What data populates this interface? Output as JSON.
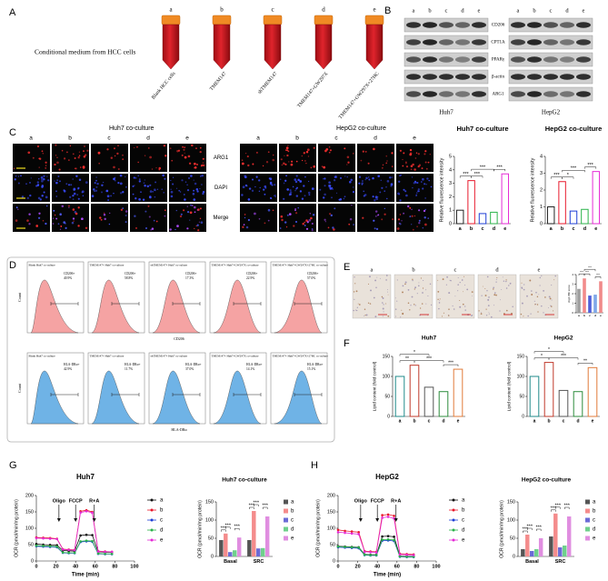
{
  "panel_labels": [
    "A",
    "B",
    "C",
    "D",
    "E",
    "F",
    "G",
    "H"
  ],
  "panel_a": {
    "caption": "Conditional medium from HCC cells",
    "tube_letters": [
      "a",
      "b",
      "c",
      "d",
      "e"
    ],
    "tube_labels": [
      "Blank HCC cells",
      "TMEM147",
      "shTMEM147",
      "TMEM147+GW297X",
      "TMEM147+GW297X+27HC"
    ]
  },
  "panel_b": {
    "lane_letters": [
      "a",
      "b",
      "c",
      "d",
      "e"
    ],
    "proteins": [
      "CD206",
      "CPT1A",
      "PPARγ",
      "β-actin",
      "ARG1"
    ],
    "cell_lines": [
      "Huh7",
      "HepG2"
    ]
  },
  "panel_c": {
    "titles": [
      "Huh7 co-culture",
      "HepG2 co-culture"
    ],
    "lane_letters": [
      "a",
      "b",
      "c",
      "d",
      "e"
    ],
    "stains": [
      "ARG1",
      "DAPI",
      "Merge"
    ]
  },
  "panel_d": {
    "rows": [
      {
        "x_label": "CD206",
        "y_label": "Count",
        "color": "#f5a3a3",
        "titles": [
          "Blank Huh7 co-culture",
          "TMEM147+ Huh7 co-culture",
          "shTMEM147+ Huh7 co-culture",
          "TMEM147+ Huh7+GW297X co-culture",
          "TMEM147+ Huh7+GW297X+27HC co-culture"
        ],
        "gates": [
          {
            "label": "CD206+",
            "percent": "40.9%"
          },
          {
            "label": "CD206+",
            "percent": "58.8%"
          },
          {
            "label": "CD206+",
            "percent": "17.3%"
          },
          {
            "label": "CD206+",
            "percent": "22.9%"
          },
          {
            "label": "CD206+",
            "percent": "57.0%"
          }
        ]
      },
      {
        "x_label": "HLA-DRα",
        "y_label": "Count",
        "color": "#6fb3e6",
        "titles": [
          "Blank Huh7 co-culture",
          "TMEM147+ Huh7 co-culture",
          "shTMEM147+ Huh7 co-culture",
          "TMEM147+ Huh7+GW297X co-culture",
          "TMEM147+ Huh7+GW297X+27HC co-culture"
        ],
        "gates": [
          {
            "label": "HLA-DRα+",
            "percent": "42.9%"
          },
          {
            "label": "HLA-DRα+",
            "percent": "11.7%"
          },
          {
            "label": "HLA-DRα+",
            "percent": "37.0%"
          },
          {
            "label": "HLA-DRα+",
            "percent": "14.1%"
          },
          {
            "label": "HLA-DRα+",
            "percent": "15.1%"
          }
        ]
      }
    ]
  },
  "panel_e": {
    "lane_letters": [
      "a",
      "b",
      "c",
      "d",
      "e"
    ]
  },
  "chart_data": [
    {
      "type": "bar",
      "title": "Huh7 co-culture",
      "y_label": "Relative fluorescence intensity",
      "categories": [
        "a",
        "b",
        "c",
        "d",
        "e"
      ],
      "values": [
        1.0,
        3.2,
        0.75,
        0.85,
        3.7
      ],
      "colors": [
        "#222222",
        "#e8192c",
        "#1f3fd6",
        "#2bb34a",
        "#e52ad6"
      ],
      "filled": false,
      "ylim": [
        0,
        5
      ],
      "yticks": [
        0,
        1,
        2,
        3,
        4,
        5
      ],
      "significance": [
        {
          "label": "***",
          "pair": [
            "a",
            "b"
          ]
        },
        {
          "label": "***",
          "pair": [
            "b",
            "c"
          ]
        },
        {
          "label": "***",
          "pair": [
            "d",
            "e"
          ]
        },
        {
          "label": "***",
          "pair": [
            "b",
            "d"
          ]
        }
      ]
    },
    {
      "type": "bar",
      "title": "HepG2 co-culture",
      "y_label": "Relative fluorescence intensity",
      "categories": [
        "a",
        "b",
        "c",
        "d",
        "e"
      ],
      "values": [
        1.0,
        2.5,
        0.75,
        0.85,
        3.1
      ],
      "colors": [
        "#222222",
        "#e8192c",
        "#1f3fd6",
        "#2bb34a",
        "#e52ad6"
      ],
      "filled": false,
      "ylim": [
        0,
        4
      ],
      "yticks": [
        0,
        1,
        2,
        3,
        4
      ],
      "significance": [
        {
          "label": "***",
          "pair": [
            "a",
            "b"
          ]
        },
        {
          "label": "*",
          "pair": [
            "b",
            "c"
          ]
        },
        {
          "label": "***",
          "pair": [
            "d",
            "e"
          ]
        },
        {
          "label": "***",
          "pair": [
            "b",
            "d"
          ]
        }
      ]
    },
    {
      "type": "bar",
      "title": "",
      "y_label": "Arg1 IHC score",
      "categories": [
        "a",
        "b",
        "c",
        "d",
        "e"
      ],
      "values": [
        2.5,
        3.6,
        1.8,
        1.9,
        3.3
      ],
      "colors": [
        "#9e9e9e",
        "#f28b8b",
        "#4f5fd9",
        "#7fa7e8",
        "#f08a8a"
      ],
      "filled": true,
      "ylim": [
        0,
        4
      ],
      "yticks": [
        0,
        1,
        2,
        3,
        4
      ],
      "significance": [
        {
          "label": "***",
          "pair": [
            "a",
            "b"
          ]
        },
        {
          "label": "***",
          "pair": [
            "b",
            "c"
          ]
        },
        {
          "label": "***",
          "pair": [
            "d",
            "e"
          ]
        },
        {
          "label": "***",
          "pair": [
            "b",
            "d"
          ]
        }
      ]
    },
    {
      "type": "bar",
      "title": "Huh7",
      "y_label": "Lipid content (fold control)",
      "categories": [
        "a",
        "b",
        "c",
        "d",
        "e"
      ],
      "values": [
        100,
        128,
        73,
        62,
        118
      ],
      "colors": [
        "#1f8a8a",
        "#c0392b",
        "#555555",
        "#2c8c3c",
        "#e07b39"
      ],
      "filled": false,
      "ylim": [
        0,
        150
      ],
      "yticks": [
        0,
        50,
        100,
        150
      ],
      "significance": [
        {
          "label": "**",
          "pair": [
            "a",
            "b"
          ]
        },
        {
          "label": "***",
          "pair": [
            "b",
            "d"
          ]
        },
        {
          "label": "***",
          "pair": [
            "d",
            "e"
          ]
        },
        {
          "label": "*",
          "pair": [
            "a",
            "c"
          ]
        }
      ]
    },
    {
      "type": "bar",
      "title": "HepG2",
      "y_label": "Lipid content (fold control)",
      "categories": [
        "a",
        "b",
        "c",
        "d",
        "e"
      ],
      "values": [
        100,
        135,
        65,
        62,
        122
      ],
      "colors": [
        "#1f8a8a",
        "#c0392b",
        "#555555",
        "#2c8c3c",
        "#e07b39"
      ],
      "filled": false,
      "ylim": [
        0,
        150
      ],
      "yticks": [
        0,
        50,
        100,
        150
      ],
      "significance": [
        {
          "label": "*",
          "pair": [
            "a",
            "b"
          ]
        },
        {
          "label": "***",
          "pair": [
            "b",
            "d"
          ]
        },
        {
          "label": "**",
          "pair": [
            "d",
            "e"
          ]
        },
        {
          "label": "*",
          "pair": [
            "a",
            "c"
          ]
        }
      ]
    },
    {
      "type": "line",
      "title": "Huh7",
      "x_label": "Time (min)",
      "y_label": "OCR (pmol/min/mg protein)",
      "x": [
        0,
        7,
        14,
        21,
        27,
        33,
        39,
        45,
        51,
        57,
        63,
        70,
        77
      ],
      "xlim": [
        0,
        100
      ],
      "xticks": [
        0,
        20,
        40,
        60,
        80,
        100
      ],
      "ylim": [
        0,
        200
      ],
      "yticks": [
        0,
        50,
        100,
        150,
        200
      ],
      "injections": [
        {
          "label": "Oligo",
          "x": 23
        },
        {
          "label": "FCCP",
          "x": 40
        },
        {
          "label": "R+A",
          "x": 59
        }
      ],
      "series": [
        {
          "name": "a",
          "color": "#111111",
          "values": [
            52,
            50,
            49,
            48,
            32,
            31,
            30,
            78,
            80,
            79,
            28,
            27,
            27
          ]
        },
        {
          "name": "b",
          "color": "#e8192c",
          "values": [
            72,
            71,
            70,
            68,
            36,
            35,
            34,
            152,
            155,
            150,
            30,
            29,
            28
          ]
        },
        {
          "name": "c",
          "color": "#1f3fd6",
          "values": [
            45,
            44,
            43,
            42,
            25,
            24,
            24,
            58,
            60,
            59,
            22,
            21,
            21
          ]
        },
        {
          "name": "d",
          "color": "#2bb34a",
          "values": [
            47,
            46,
            45,
            44,
            26,
            25,
            25,
            60,
            62,
            61,
            23,
            22,
            22
          ]
        },
        {
          "name": "e",
          "color": "#e52ad6",
          "values": [
            70,
            69,
            68,
            67,
            35,
            34,
            33,
            148,
            152,
            147,
            29,
            28,
            28
          ]
        }
      ]
    },
    {
      "type": "grouped-bar",
      "title": "Huh7 co-culture",
      "y_label": "OCR (pmol/min/mg protein)",
      "categories": [
        "Basal",
        "SRC"
      ],
      "ylim": [
        0,
        150
      ],
      "yticks": [
        0,
        50,
        100,
        150
      ],
      "series": [
        {
          "name": "a",
          "color": "#555555",
          "values": [
            45,
            45
          ]
        },
        {
          "name": "b",
          "color": "#f48c8c",
          "values": [
            63,
            125
          ]
        },
        {
          "name": "c",
          "color": "#6b6bd6",
          "values": [
            12,
            22
          ]
        },
        {
          "name": "d",
          "color": "#6fd08c",
          "values": [
            17,
            23
          ]
        },
        {
          "name": "e",
          "color": "#e08ee0",
          "values": [
            52,
            110
          ]
        }
      ],
      "significance": [
        {
          "label": "***",
          "category": "Basal",
          "pair": [
            "a",
            "b"
          ]
        },
        {
          "label": "***",
          "category": "Basal",
          "pair": [
            "b",
            "c"
          ]
        },
        {
          "label": "***",
          "category": "Basal",
          "pair": [
            "d",
            "e"
          ]
        },
        {
          "label": "***",
          "category": "SRC",
          "pair": [
            "a",
            "b"
          ]
        },
        {
          "label": "***",
          "category": "SRC",
          "pair": [
            "b",
            "c"
          ]
        },
        {
          "label": "***",
          "category": "SRC",
          "pair": [
            "d",
            "e"
          ]
        }
      ]
    },
    {
      "type": "line",
      "title": "HepG2",
      "x_label": "Time (min)",
      "y_label": "OCR (pmol/min/mg protein)",
      "x": [
        0,
        7,
        14,
        21,
        27,
        33,
        39,
        45,
        51,
        57,
        63,
        70,
        77
      ],
      "xlim": [
        0,
        100
      ],
      "xticks": [
        0,
        20,
        40,
        60,
        80,
        100
      ],
      "ylim": [
        0,
        200
      ],
      "yticks": [
        0,
        50,
        100,
        150,
        200
      ],
      "injections": [
        {
          "label": "Oligo",
          "x": 23
        },
        {
          "label": "FCCP",
          "x": 40
        },
        {
          "label": "R+A",
          "x": 59
        }
      ],
      "series": [
        {
          "name": "a",
          "color": "#111111",
          "values": [
            45,
            44,
            43,
            42,
            20,
            19,
            19,
            75,
            76,
            74,
            15,
            14,
            14
          ]
        },
        {
          "name": "b",
          "color": "#e8192c",
          "values": [
            95,
            92,
            90,
            88,
            30,
            29,
            28,
            140,
            142,
            138,
            22,
            21,
            20
          ]
        },
        {
          "name": "c",
          "color": "#1f3fd6",
          "values": [
            42,
            41,
            40,
            39,
            18,
            17,
            17,
            62,
            63,
            61,
            13,
            12,
            12
          ]
        },
        {
          "name": "d",
          "color": "#2bb34a",
          "values": [
            44,
            43,
            42,
            41,
            19,
            18,
            18,
            65,
            66,
            64,
            14,
            13,
            13
          ]
        },
        {
          "name": "e",
          "color": "#e52ad6",
          "values": [
            88,
            86,
            84,
            82,
            28,
            27,
            26,
            132,
            135,
            130,
            20,
            19,
            18
          ]
        }
      ]
    },
    {
      "type": "grouped-bar",
      "title": "HepG2 co-culture",
      "y_label": "OCR (pmol/min/mg protein)",
      "categories": [
        "Basal",
        "SRC"
      ],
      "ylim": [
        0,
        150
      ],
      "yticks": [
        0,
        50,
        100,
        150
      ],
      "series": [
        {
          "name": "a",
          "color": "#555555",
          "values": [
            20,
            55
          ]
        },
        {
          "name": "b",
          "color": "#f48c8c",
          "values": [
            60,
            118
          ]
        },
        {
          "name": "c",
          "color": "#6b6bd6",
          "values": [
            15,
            25
          ]
        },
        {
          "name": "d",
          "color": "#6fd08c",
          "values": [
            20,
            30
          ]
        },
        {
          "name": "e",
          "color": "#e08ee0",
          "values": [
            50,
            110
          ]
        }
      ],
      "significance": [
        {
          "label": "***",
          "category": "Basal",
          "pair": [
            "a",
            "b"
          ]
        },
        {
          "label": "***",
          "category": "Basal",
          "pair": [
            "b",
            "c"
          ]
        },
        {
          "label": "***",
          "category": "Basal",
          "pair": [
            "d",
            "e"
          ]
        },
        {
          "label": "***",
          "category": "SRC",
          "pair": [
            "a",
            "b"
          ]
        },
        {
          "label": "***",
          "category": "SRC",
          "pair": [
            "b",
            "c"
          ]
        },
        {
          "label": "***",
          "category": "SRC",
          "pair": [
            "d",
            "e"
          ]
        }
      ]
    }
  ]
}
